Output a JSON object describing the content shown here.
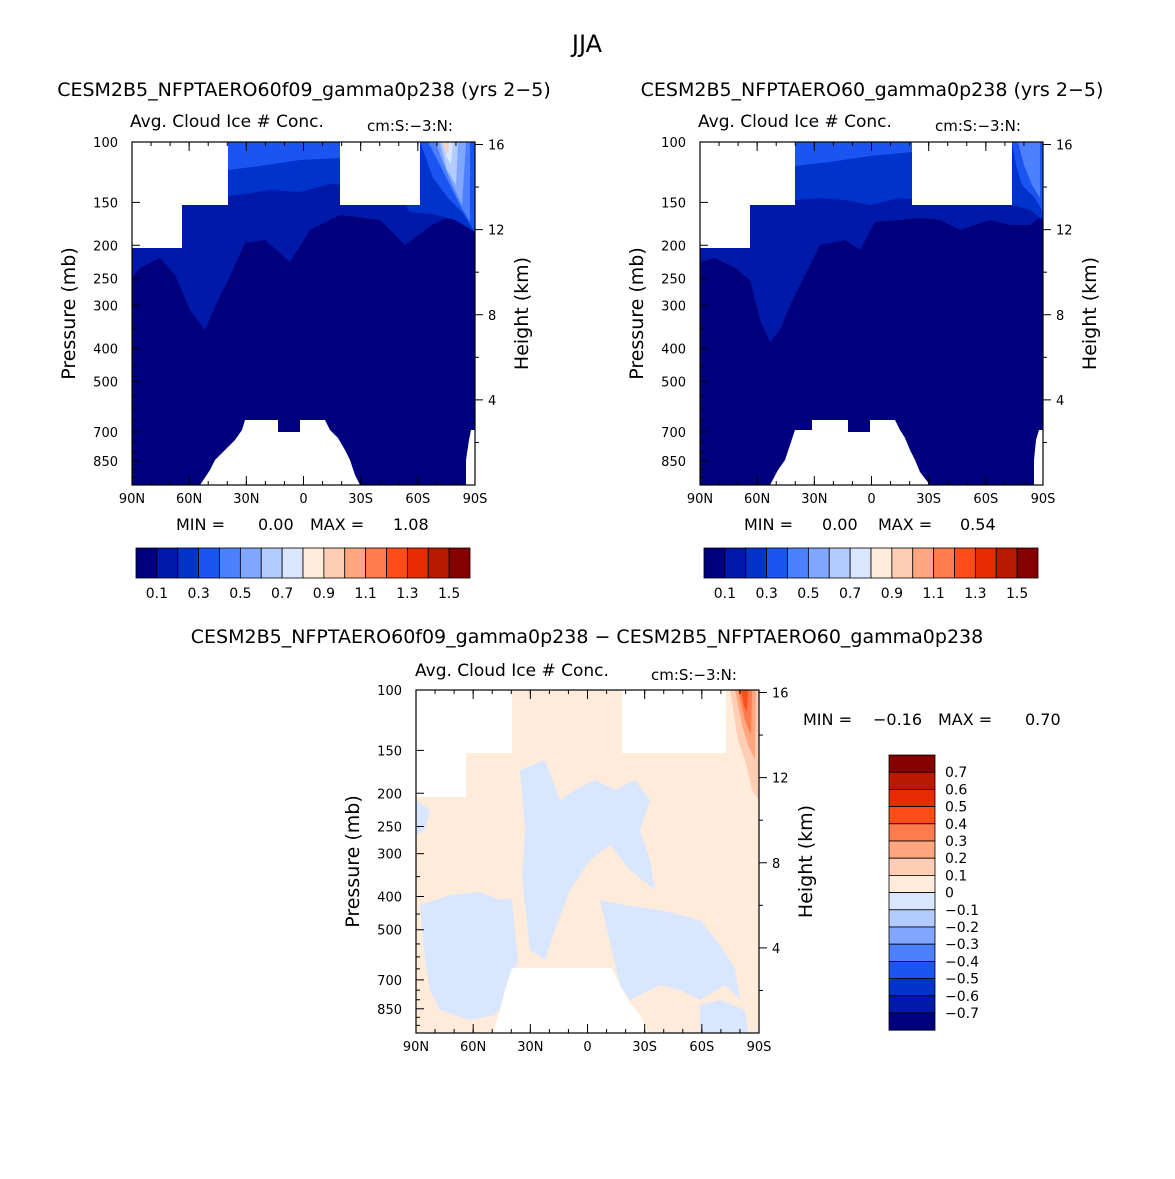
{
  "page_title": "JJA",
  "chart_data": [
    {
      "type": "contour",
      "title": "CESM2B5_NFPTAERO60f09_gamma0p238 (yrs 2−5)",
      "subtitle_left": "Avg. Cloud Ice # Conc.",
      "subtitle_right": "cm:S:−3:N:",
      "xlabel": "",
      "ylabel": "Pressure (mb)",
      "ylabel_right": "Height (km)",
      "x_ticks": [
        "90N",
        "60N",
        "30N",
        "0",
        "30S",
        "60S",
        "90S"
      ],
      "y_ticks": [
        "100",
        "150",
        "200",
        "250",
        "300",
        "400",
        "500",
        "700",
        "850"
      ],
      "y_ticks_right": [
        "16",
        "12",
        "8",
        "4"
      ],
      "min_label": "MIN =",
      "min_value": "0.00",
      "max_label": "MAX =",
      "max_value": "1.08",
      "min": 0.0,
      "max": 1.08,
      "colorbar_labels": [
        "0.1",
        "0.3",
        "0.5",
        "0.7",
        "0.9",
        "1.1",
        "1.3",
        "1.5"
      ]
    },
    {
      "type": "contour",
      "title": "CESM2B5_NFPTAERO60_gamma0p238 (yrs 2−5)",
      "subtitle_left": "Avg. Cloud Ice # Conc.",
      "subtitle_right": "cm:S:−3:N:",
      "xlabel": "",
      "ylabel": "Pressure (mb)",
      "ylabel_right": "Height (km)",
      "x_ticks": [
        "90N",
        "60N",
        "30N",
        "0",
        "30S",
        "60S",
        "90S"
      ],
      "y_ticks": [
        "100",
        "150",
        "200",
        "250",
        "300",
        "400",
        "500",
        "700",
        "850"
      ],
      "y_ticks_right": [
        "16",
        "12",
        "8",
        "4"
      ],
      "min_label": "MIN =",
      "min_value": "0.00",
      "max_label": "MAX =",
      "max_value": "0.54",
      "min": 0.0,
      "max": 0.54,
      "colorbar_labels": [
        "0.1",
        "0.3",
        "0.5",
        "0.7",
        "0.9",
        "1.1",
        "1.3",
        "1.5"
      ]
    },
    {
      "type": "contour",
      "title": "CESM2B5_NFPTAERO60f09_gamma0p238 − CESM2B5_NFPTAERO60_gamma0p238",
      "subtitle_left": "Avg. Cloud Ice # Conc.",
      "subtitle_right": "cm:S:−3:N:",
      "xlabel": "",
      "ylabel": "Pressure (mb)",
      "ylabel_right": "Height (km)",
      "x_ticks": [
        "90N",
        "60N",
        "30N",
        "0",
        "30S",
        "60S",
        "90S"
      ],
      "y_ticks": [
        "100",
        "150",
        "200",
        "250",
        "300",
        "400",
        "500",
        "700",
        "850"
      ],
      "y_ticks_right": [
        "16",
        "12",
        "8",
        "4"
      ],
      "min_label": "MIN =",
      "min_value": "−0.16",
      "max_label": "MAX =",
      "max_value": "0.70",
      "min": -0.16,
      "max": 0.7,
      "colorbar_labels": [
        "0.7",
        "0.6",
        "0.5",
        "0.4",
        "0.3",
        "0.2",
        "0.1",
        "0",
        "−0.1",
        "−0.2",
        "−0.3",
        "−0.4",
        "−0.5",
        "−0.6",
        "−0.7"
      ]
    }
  ],
  "colors": {
    "seq": [
      "#00007f",
      "#0019a8",
      "#0033cc",
      "#1a55f2",
      "#4d80ff",
      "#80a6ff",
      "#b3ccff",
      "#d9e6ff",
      "#ffebd9",
      "#ffcdb3",
      "#ffa680",
      "#ff7a4d",
      "#ff4d1a",
      "#e62b00",
      "#b81a00",
      "#850000"
    ],
    "diff": [
      "#850000",
      "#b81a00",
      "#e62b00",
      "#ff4d1a",
      "#ff7a4d",
      "#ffa680",
      "#ffcdb3",
      "#ffebd9",
      "#d9e6ff",
      "#b3ccff",
      "#80a6ff",
      "#4d80ff",
      "#1a55f2",
      "#0033cc",
      "#0019a8",
      "#00007f"
    ]
  }
}
